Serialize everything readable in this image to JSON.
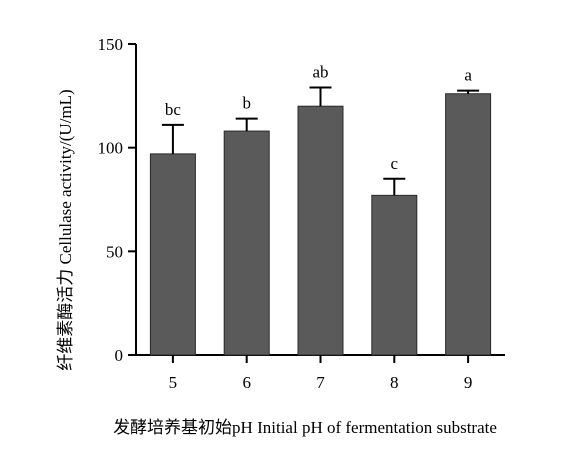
{
  "chart_data": {
    "type": "bar",
    "categories": [
      "5",
      "6",
      "7",
      "8",
      "9"
    ],
    "values": [
      97,
      108,
      120,
      77,
      126
    ],
    "errors": [
      14,
      6,
      9,
      8,
      1.5
    ],
    "significance_letters": [
      "bc",
      "b",
      "ab",
      "c",
      "a"
    ],
    "ylabel": "纤维素酶活力 Cellulase activity/(U/mL)",
    "xlabel": "发酵培养基初始pH Initial pH of fermentation substrate",
    "ylim": [
      0,
      150
    ],
    "yticks": [
      "0",
      "50",
      "100",
      "150"
    ],
    "grid": false,
    "bar_color": "#5a5a5a"
  }
}
